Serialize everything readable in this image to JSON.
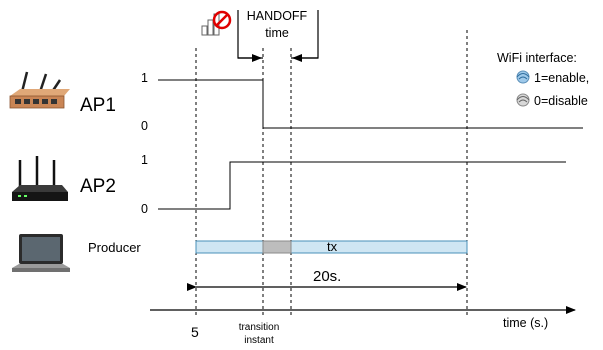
{
  "handoff": {
    "line1": "HANDOFF",
    "line2": "time"
  },
  "legend": {
    "title": "WiFi interface:",
    "enable": "1=enable,",
    "disable": "0=disable"
  },
  "devices": {
    "ap1": "AP1",
    "ap2": "AP2",
    "producer": "Producer"
  },
  "levels": {
    "ap1_high": "1",
    "ap1_low": "0",
    "ap2_high": "1",
    "ap2_low": "0"
  },
  "bar": {
    "label": "tx"
  },
  "duration": {
    "label": "20s."
  },
  "axis": {
    "label": "time (s.)",
    "start_tick": "5",
    "transition_line1": "transition",
    "transition_line2": "instant"
  },
  "icons": [
    "router-icon",
    "wireless-router-icon",
    "laptop-icon",
    "no-signal-icon",
    "wifi-enable-icon",
    "wifi-disable-icon"
  ],
  "colors": {
    "bar_fill": "#cfe6f3",
    "bar_stroke": "#4a90b8",
    "handoff_fill": "#bdbdbd",
    "router_body": "#c98555",
    "no_sign": "#e00000"
  }
}
